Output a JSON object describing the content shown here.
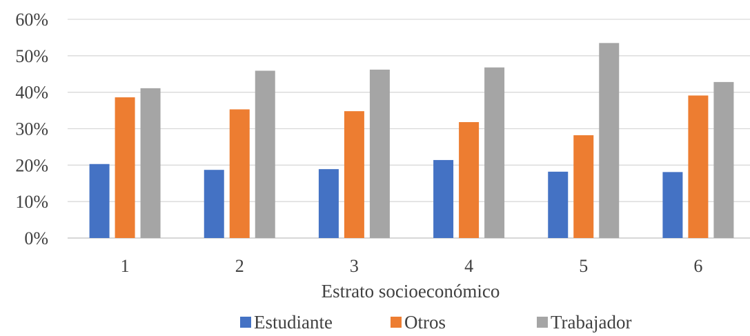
{
  "chart_data": {
    "type": "bar",
    "categories": [
      "1",
      "2",
      "3",
      "4",
      "5",
      "6"
    ],
    "series": [
      {
        "name": "Estudiante",
        "color": "#4472c4",
        "values": [
          0.203,
          0.187,
          0.189,
          0.214,
          0.182,
          0.181
        ]
      },
      {
        "name": "Otros",
        "color": "#ed7d31",
        "values": [
          0.386,
          0.353,
          0.348,
          0.318,
          0.282,
          0.391
        ]
      },
      {
        "name": "Trabajador",
        "color": "#a5a5a5",
        "values": [
          0.411,
          0.459,
          0.462,
          0.468,
          0.535,
          0.428
        ]
      }
    ],
    "xlabel": "Estrato socioeconómico",
    "ylabel": "",
    "ylim": [
      0,
      0.6
    ],
    "yticks": [
      {
        "value": 0,
        "label": "0%"
      },
      {
        "value": 0.1,
        "label": "10%"
      },
      {
        "value": 0.2,
        "label": "20%"
      },
      {
        "value": 0.3,
        "label": "30%"
      },
      {
        "value": 0.4,
        "label": "40%"
      },
      {
        "value": 0.5,
        "label": "50%"
      },
      {
        "value": 0.6,
        "label": "60%"
      }
    ],
    "grid": true,
    "legend_position": "bottom"
  }
}
